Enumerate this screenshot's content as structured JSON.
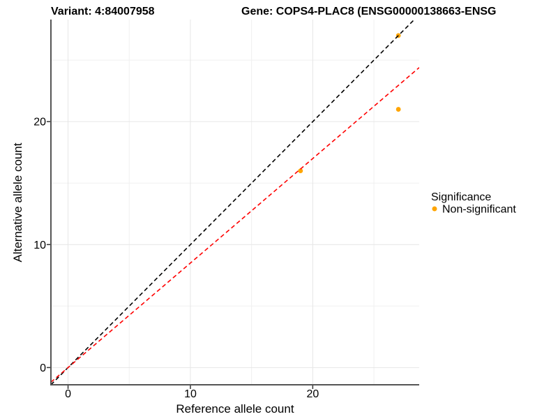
{
  "chart_data": {
    "type": "scatter",
    "title_variant": "Variant: 4:84007958",
    "title_gene": "Gene: COPS4-PLAC8 (ENSG00000138663-ENSG",
    "xlabel": "Reference allele count",
    "ylabel": "Alternative allele count",
    "xlim": [
      -1.4,
      28.7
    ],
    "ylim": [
      -1.4,
      28.3
    ],
    "x_ticks": [
      0,
      10,
      20
    ],
    "y_ticks": [
      0,
      10,
      20
    ],
    "x_minor_ticks": [
      5,
      15,
      25
    ],
    "y_minor_ticks": [
      5,
      15,
      25
    ],
    "grid": true,
    "legend_position": "right",
    "points": [
      {
        "ref": 19,
        "alt": 16,
        "significance": "Non-significant"
      },
      {
        "ref": 27,
        "alt": 21,
        "significance": "Non-significant"
      },
      {
        "ref": 27,
        "alt": 27,
        "significance": "Non-significant"
      }
    ],
    "lines": [
      {
        "name": "identity-line",
        "slope": 1.0,
        "intercept": 0,
        "color": "#000000",
        "style": "dashed"
      },
      {
        "name": "expected-ratio-line",
        "slope": 0.85,
        "intercept": 0,
        "color": "#FF0000",
        "style": "dashed"
      }
    ],
    "legend": {
      "title": "Significance",
      "items": [
        {
          "label": "Non-significant",
          "color": "#FFA500"
        }
      ]
    },
    "colors": {
      "point": "#FFA500",
      "grid_major": "#E6E6E6",
      "grid_minor": "#F0F0F0",
      "axis_line": "#555555",
      "tick_mark": "#333333"
    }
  }
}
